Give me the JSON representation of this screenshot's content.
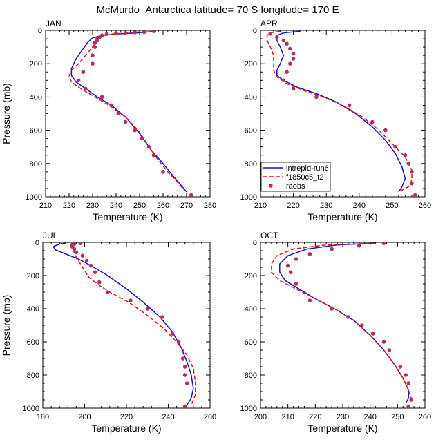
{
  "title": "McMurdo_Antarctica  latitude= 70 S longitude= 170 E",
  "colors": {
    "run6": "#1010d0",
    "f1850": "#e01010",
    "raobs": "#b03060"
  },
  "legend": {
    "entries": [
      "intrepid-run6",
      "f1850c5_t2",
      "raobs"
    ]
  },
  "chart_data": [
    {
      "type": "line",
      "panel": "JAN",
      "label": "JAN",
      "xlabel": "Temperature (K)",
      "ylabel": "Pressure (mb)",
      "xlim": [
        210,
        280
      ],
      "ylim": [
        0,
        1000
      ],
      "y_inverted": true,
      "xticks": [
        210,
        220,
        230,
        240,
        250,
        260,
        270,
        280
      ],
      "yticks": [
        0,
        200,
        400,
        600,
        800,
        1000
      ],
      "series": [
        {
          "name": "intrepid-run6",
          "style": "solid",
          "x": [
            257,
            249,
            240,
            234,
            230,
            228,
            226,
            223,
            221,
            221,
            223,
            227,
            232,
            238,
            244,
            250,
            255,
            260,
            264,
            267,
            270
          ],
          "y": [
            5,
            15,
            22,
            30,
            45,
            70,
            110,
            170,
            230,
            270,
            310,
            350,
            400,
            450,
            520,
            620,
            720,
            800,
            870,
            920,
            970
          ]
        },
        {
          "name": "f1850c5_t2",
          "style": "dashed",
          "x": [
            253,
            245,
            238,
            234,
            232,
            230,
            227,
            224,
            221,
            220,
            221,
            225,
            231,
            237,
            244,
            250,
            254,
            258,
            262,
            266,
            269
          ],
          "y": [
            5,
            15,
            22,
            35,
            60,
            100,
            150,
            200,
            240,
            275,
            310,
            350,
            400,
            450,
            520,
            610,
            700,
            780,
            850,
            910,
            960
          ]
        },
        {
          "name": "raobs",
          "style": "markers",
          "x": [
            256,
            252,
            248,
            244,
            240,
            236,
            234,
            233,
            232,
            232,
            231,
            231,
            230,
            230,
            226,
            224,
            227,
            234,
            238,
            241,
            244,
            248,
            251,
            254,
            256,
            260,
            272
          ],
          "y": [
            5,
            10,
            12,
            15,
            18,
            22,
            30,
            40,
            50,
            60,
            75,
            100,
            150,
            200,
            250,
            300,
            350,
            400,
            450,
            500,
            550,
            600,
            650,
            700,
            750,
            850,
            990
          ]
        }
      ]
    },
    {
      "type": "line",
      "panel": "APR",
      "label": "APR",
      "xlabel": "Temperature (K)",
      "ylabel": "",
      "xlim": [
        210,
        260
      ],
      "ylim": [
        0,
        1000
      ],
      "y_inverted": true,
      "xticks": [
        210,
        220,
        230,
        240,
        250,
        260
      ],
      "yticks": [
        0,
        200,
        400,
        600,
        800,
        1000
      ],
      "series": [
        {
          "name": "intrepid-run6",
          "style": "solid",
          "x": [
            222,
            217,
            215,
            215,
            216,
            217,
            216,
            215,
            215,
            217,
            221,
            227,
            233,
            239,
            244,
            248,
            251,
            253,
            254,
            253,
            252
          ],
          "y": [
            5,
            15,
            30,
            60,
            100,
            150,
            200,
            240,
            270,
            300,
            340,
            380,
            430,
            500,
            580,
            660,
            740,
            820,
            890,
            940,
            970
          ]
        },
        {
          "name": "f1850c5_t2",
          "style": "dashed",
          "x": [
            216,
            213,
            212,
            212,
            213,
            214,
            214,
            214,
            215,
            218,
            223,
            229,
            235,
            241,
            246,
            250,
            254,
            256,
            256,
            255,
            252
          ],
          "y": [
            5,
            15,
            30,
            60,
            100,
            150,
            200,
            240,
            280,
            320,
            360,
            400,
            450,
            520,
            600,
            680,
            760,
            840,
            900,
            940,
            970
          ]
        },
        {
          "name": "raobs",
          "style": "markers",
          "x": [
            213,
            215,
            217,
            218,
            219,
            220,
            220,
            219,
            218,
            217,
            220,
            227,
            237,
            244,
            248,
            251,
            254,
            255,
            256,
            256,
            257
          ],
          "y": [
            20,
            40,
            60,
            80,
            110,
            140,
            170,
            200,
            250,
            300,
            350,
            400,
            450,
            550,
            600,
            700,
            750,
            800,
            850,
            920,
            990
          ]
        }
      ]
    },
    {
      "type": "line",
      "panel": "JUL",
      "label": "JUL",
      "xlabel": "Temperature (K)",
      "ylabel": "Pressure (mb)",
      "xlim": [
        180,
        260
      ],
      "ylim": [
        0,
        1000
      ],
      "y_inverted": true,
      "xticks": [
        180,
        200,
        220,
        240,
        260
      ],
      "yticks": [
        0,
        200,
        400,
        600,
        800,
        1000
      ],
      "series": [
        {
          "name": "intrepid-run6",
          "style": "solid",
          "x": [
            191,
            188,
            185,
            186,
            191,
            197,
            203,
            211,
            220,
            228,
            236,
            242,
            246,
            249,
            251,
            252,
            251,
            249
          ],
          "y": [
            5,
            10,
            25,
            45,
            70,
            100,
            140,
            200,
            280,
            360,
            450,
            540,
            630,
            720,
            800,
            880,
            940,
            980
          ]
        },
        {
          "name": "f1850c5_t2",
          "style": "dashed",
          "x": [
            193,
            194,
            195,
            196,
            198,
            200,
            202,
            206,
            212,
            221,
            230,
            238,
            244,
            249,
            252,
            253,
            253,
            251
          ],
          "y": [
            10,
            30,
            60,
            90,
            130,
            170,
            210,
            250,
            300,
            360,
            440,
            520,
            600,
            680,
            760,
            840,
            920,
            980
          ]
        },
        {
          "name": "raobs",
          "style": "markers",
          "x": [
            198,
            195,
            194,
            194,
            195,
            196,
            199,
            201,
            203,
            205,
            207,
            211,
            222,
            230,
            237,
            242,
            245,
            247,
            248,
            248,
            249,
            248
          ],
          "y": [
            5,
            10,
            15,
            25,
            40,
            60,
            80,
            110,
            140,
            180,
            240,
            300,
            350,
            400,
            450,
            550,
            600,
            700,
            750,
            800,
            850,
            990
          ]
        }
      ]
    },
    {
      "type": "line",
      "panel": "OCT",
      "label": "OCT",
      "xlabel": "Temperature (K)",
      "ylabel": "",
      "xlim": [
        200,
        260
      ],
      "ylim": [
        0,
        1000
      ],
      "y_inverted": true,
      "xticks": [
        200,
        210,
        220,
        230,
        240,
        250,
        260
      ],
      "yticks": [
        0,
        200,
        400,
        600,
        800,
        1000
      ],
      "series": [
        {
          "name": "intrepid-run6",
          "style": "solid",
          "x": [
            242,
            228,
            217,
            210,
            207,
            207,
            209,
            214,
            220,
            227,
            234,
            240,
            245,
            249,
            252,
            254,
            254,
            253
          ],
          "y": [
            5,
            15,
            40,
            80,
            130,
            180,
            230,
            280,
            340,
            400,
            470,
            560,
            650,
            740,
            820,
            890,
            940,
            970
          ]
        },
        {
          "name": "f1850c5_t2",
          "style": "dashed",
          "x": [
            242,
            224,
            212,
            206,
            204,
            204,
            207,
            213,
            220,
            227,
            234,
            240,
            245,
            249,
            252,
            254,
            255,
            255
          ],
          "y": [
            5,
            15,
            40,
            80,
            130,
            180,
            230,
            280,
            340,
            400,
            470,
            560,
            650,
            740,
            820,
            890,
            940,
            970
          ]
        },
        {
          "name": "raobs",
          "style": "markers",
          "x": [
            245,
            236,
            226,
            218,
            213,
            210,
            211,
            213,
            218,
            226,
            232,
            237,
            241,
            245,
            247,
            251,
            253,
            254,
            255,
            254
          ],
          "y": [
            5,
            20,
            40,
            70,
            100,
            140,
            180,
            250,
            350,
            400,
            450,
            500,
            550,
            600,
            650,
            750,
            800,
            850,
            950,
            990
          ]
        }
      ]
    }
  ]
}
